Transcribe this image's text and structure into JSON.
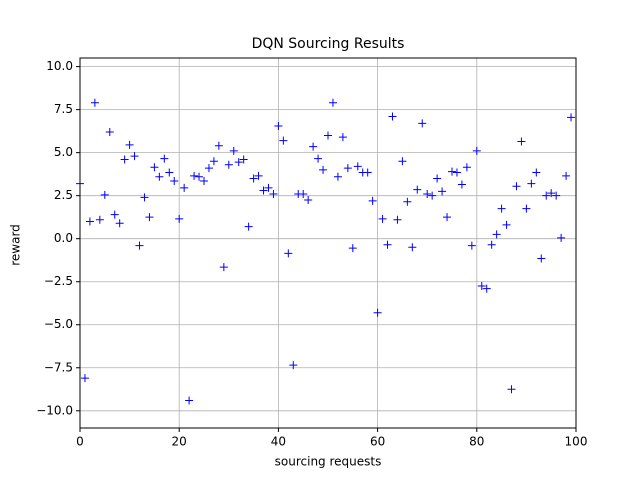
{
  "chart_data": {
    "type": "scatter",
    "title": "DQN Sourcing Results",
    "xlabel": "sourcing requests",
    "ylabel": "reward",
    "x": [
      0,
      1,
      2,
      3,
      4,
      5,
      6,
      7,
      8,
      9,
      10,
      11,
      12,
      13,
      14,
      15,
      16,
      17,
      18,
      19,
      20,
      21,
      22,
      23,
      24,
      25,
      26,
      27,
      28,
      29,
      30,
      31,
      32,
      33,
      34,
      35,
      36,
      37,
      38,
      39,
      40,
      41,
      42,
      43,
      44,
      45,
      46,
      47,
      48,
      49,
      50,
      51,
      52,
      53,
      54,
      55,
      56,
      57,
      58,
      59,
      60,
      61,
      62,
      63,
      64,
      65,
      66,
      67,
      68,
      69,
      70,
      71,
      72,
      73,
      74,
      75,
      76,
      77,
      78,
      79,
      80,
      81,
      82,
      83,
      84,
      85,
      86,
      87,
      88,
      89,
      90,
      91,
      92,
      93,
      94,
      95,
      96,
      97,
      98,
      99
    ],
    "series": [
      {
        "color": "#0000ff",
        "values": [
          3.2,
          -8.1,
          1.0,
          7.9,
          1.1,
          2.55,
          6.2,
          1.4,
          0.9,
          4.6,
          5.45,
          4.8,
          -0.4,
          2.4,
          1.25,
          4.15,
          3.6,
          4.65,
          3.85,
          3.35,
          1.15,
          2.95,
          -9.4,
          3.65,
          3.6,
          3.35,
          4.1,
          4.5,
          5.4,
          -1.65,
          4.3,
          5.1,
          4.45,
          4.6,
          0.7,
          3.5,
          3.65,
          2.8,
          2.95,
          2.6,
          6.55,
          5.7,
          -0.85,
          -7.35,
          2.6,
          2.6,
          2.25,
          5.35,
          4.65,
          4.0,
          6.0,
          7.9,
          3.6,
          5.9,
          4.1,
          -0.55,
          4.2,
          3.85,
          3.85,
          2.2,
          -4.3,
          1.15,
          -0.35,
          7.1,
          1.1,
          4.5,
          2.15,
          -0.5,
          2.85,
          6.7,
          2.6,
          2.5,
          3.5,
          2.75,
          1.25,
          3.9,
          3.85,
          3.15,
          4.15,
          -0.4,
          5.1,
          -2.75,
          -2.9,
          -0.35,
          0.25,
          1.75,
          0.8,
          -8.75,
          3.05,
          5.65,
          1.75,
          3.2,
          3.85,
          -1.15,
          2.5,
          2.65,
          2.5,
          0.05,
          3.65,
          7.05
        ]
      }
    ],
    "xlim": [
      0,
      100
    ],
    "ylim": [
      -11,
      10.5
    ],
    "xticks": [
      0,
      20,
      40,
      60,
      80,
      100
    ],
    "yticks": [
      {
        "value": -10,
        "label": "−10.0"
      },
      {
        "value": -7.5,
        "label": "−7.5"
      },
      {
        "value": -5,
        "label": "−5.0"
      },
      {
        "value": -2.5,
        "label": "−2.5"
      },
      {
        "value": 0,
        "label": "0.0"
      },
      {
        "value": 2.5,
        "label": "2.5"
      },
      {
        "value": 5,
        "label": "5.0"
      },
      {
        "value": 7.5,
        "label": "7.5"
      },
      {
        "value": 10,
        "label": "10.0"
      }
    ],
    "grid": true
  }
}
